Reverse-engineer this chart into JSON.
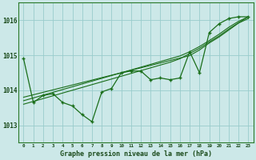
{
  "title": "Graphe pression niveau de la mer (hPa)",
  "bg_color": "#cce8e8",
  "grid_color": "#99cccc",
  "line_color": "#1a6e1a",
  "x_labels": [
    "0",
    "1",
    "2",
    "3",
    "4",
    "5",
    "6",
    "7",
    "8",
    "9",
    "10",
    "11",
    "12",
    "13",
    "14",
    "15",
    "16",
    "17",
    "18",
    "19",
    "20",
    "21",
    "22",
    "23"
  ],
  "ylim": [
    1012.5,
    1016.5
  ],
  "yticks": [
    1013,
    1014,
    1015,
    1016
  ],
  "main_series": [
    1014.9,
    1013.65,
    1013.85,
    1013.9,
    1013.65,
    1013.55,
    1013.3,
    1013.1,
    1013.95,
    1014.05,
    1014.5,
    1014.55,
    1014.55,
    1014.3,
    1014.35,
    1014.3,
    1014.35,
    1015.1,
    1014.5,
    1015.65,
    1015.9,
    1016.05,
    1016.1,
    1016.1
  ],
  "trend1": [
    1013.8,
    1013.87,
    1013.94,
    1014.01,
    1014.08,
    1014.15,
    1014.22,
    1014.29,
    1014.36,
    1014.43,
    1014.5,
    1014.57,
    1014.64,
    1014.71,
    1014.78,
    1014.85,
    1014.92,
    1014.99,
    1015.15,
    1015.35,
    1015.52,
    1015.72,
    1015.92,
    1016.05
  ],
  "trend2": [
    1013.7,
    1013.78,
    1013.86,
    1013.94,
    1014.02,
    1014.1,
    1014.18,
    1014.26,
    1014.34,
    1014.42,
    1014.5,
    1014.58,
    1014.66,
    1014.74,
    1014.82,
    1014.9,
    1014.98,
    1015.1,
    1015.25,
    1015.42,
    1015.6,
    1015.8,
    1015.97,
    1016.1
  ],
  "trend3": [
    1013.6,
    1013.68,
    1013.76,
    1013.84,
    1013.92,
    1014.0,
    1014.08,
    1014.16,
    1014.24,
    1014.32,
    1014.4,
    1014.48,
    1014.56,
    1014.64,
    1014.72,
    1014.8,
    1014.9,
    1015.05,
    1015.2,
    1015.38,
    1015.55,
    1015.75,
    1015.93,
    1016.1
  ]
}
